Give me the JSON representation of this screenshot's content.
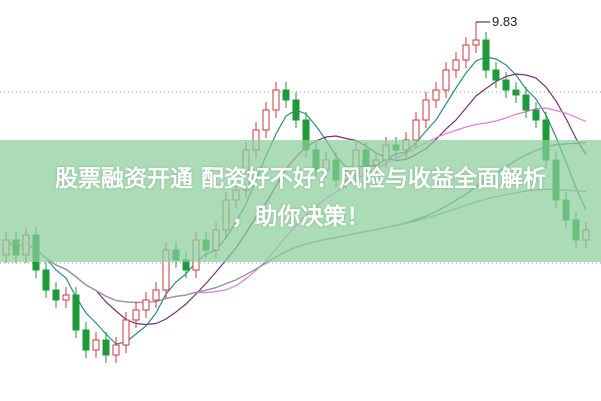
{
  "overlay": {
    "line1": "股票融资开通  配资好不好？风险与收益全面解析",
    "line2": "，助你决策！"
  },
  "chart_data": {
    "type": "candlestick",
    "peak_label": "9.83",
    "peak_high": 9.83,
    "grid": "dotted horizontal",
    "colors": {
      "up": "#c83a3a",
      "down": "#1f9a3a",
      "ma5": "#2b8a8a",
      "ma10": "#7a2f7a",
      "ma20": "#e07ae0",
      "ma60": "#3a8f6a",
      "ma120": "#9a9a9a",
      "banner": "#8ccd9b"
    },
    "opens": [
      7.5,
      7.65,
      7.5,
      7.7,
      7.35,
      7.15,
      7.05,
      7.1,
      6.75,
      6.55,
      6.65,
      6.5,
      6.6,
      6.85,
      6.95,
      7.05,
      7.15,
      7.55,
      7.45,
      7.35,
      7.65,
      7.55,
      7.75,
      8.05,
      8.15,
      8.55,
      8.75,
      8.95,
      9.15,
      9.05,
      8.85,
      8.55,
      8.35,
      8.45,
      8.25,
      8.3,
      8.55,
      8.4,
      8.45,
      8.6,
      8.55,
      8.65,
      8.85,
      9.05,
      9.15,
      9.35,
      9.45,
      9.6,
      9.65,
      9.35,
      9.25,
      9.15,
      9.1,
      8.95,
      8.85,
      8.45,
      8.05,
      7.85,
      7.65
    ],
    "closes": [
      7.65,
      7.5,
      7.7,
      7.35,
      7.15,
      7.05,
      7.1,
      6.75,
      6.55,
      6.65,
      6.5,
      6.6,
      6.85,
      6.95,
      7.05,
      7.15,
      7.55,
      7.45,
      7.35,
      7.65,
      7.55,
      7.75,
      8.05,
      8.15,
      8.55,
      8.75,
      8.95,
      9.15,
      9.05,
      8.85,
      8.55,
      8.35,
      8.45,
      8.25,
      8.3,
      8.55,
      8.4,
      8.45,
      8.6,
      8.55,
      8.65,
      8.85,
      9.05,
      9.15,
      9.35,
      9.45,
      9.6,
      9.65,
      9.35,
      9.25,
      9.15,
      9.1,
      8.95,
      8.85,
      8.45,
      8.05,
      7.85,
      7.65,
      7.75
    ]
  }
}
